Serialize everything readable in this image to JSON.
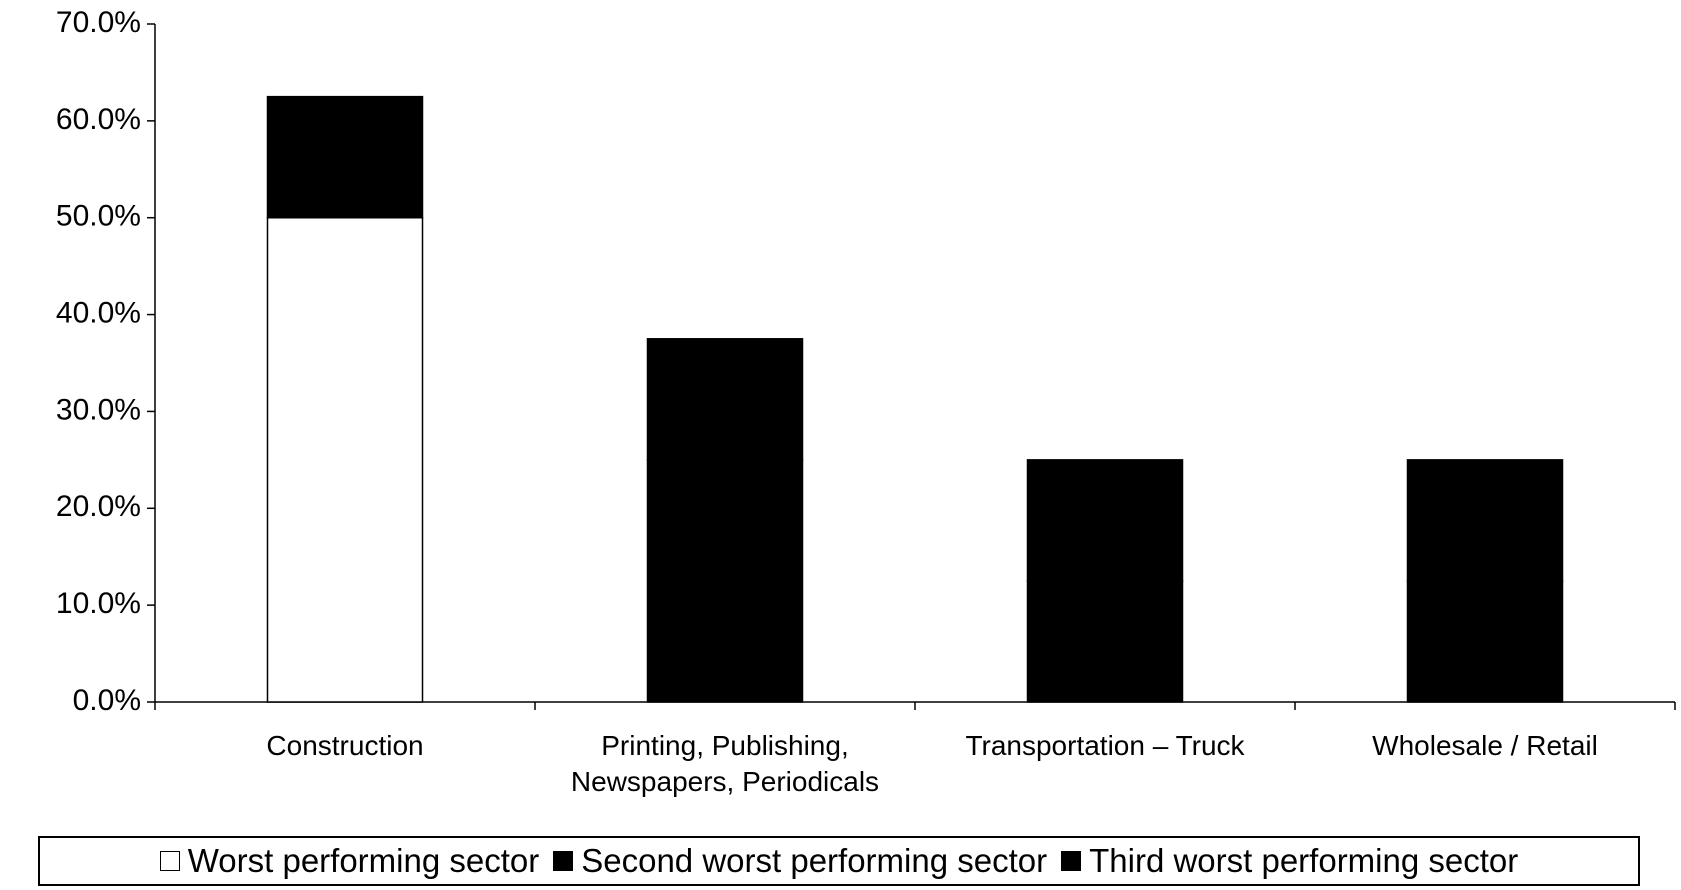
{
  "chart_data": {
    "type": "stacked_bar",
    "categories": [
      "Construction",
      "Printing, Publishing, Newspapers, Periodicals",
      "Transportation – Truck",
      "Wholesale / Retail"
    ],
    "series": [
      {
        "name": "Worst performing sector",
        "color": "#ffffff",
        "values": [
          50,
          0,
          0,
          0
        ]
      },
      {
        "name": "Second worst performing sector",
        "color": "#000000",
        "values": [
          12.5,
          25,
          12.5,
          12.5
        ]
      },
      {
        "name": "Third worst performing sector",
        "color": "#000000",
        "values": [
          0,
          12.5,
          12.5,
          12.5
        ]
      }
    ],
    "ylim": [
      0,
      70
    ],
    "yticks": [
      {
        "value": 0,
        "label": "0.0%"
      },
      {
        "value": 10,
        "label": "10.0%"
      },
      {
        "value": 20,
        "label": "20.0%"
      },
      {
        "value": 30,
        "label": "30.0%"
      },
      {
        "value": 40,
        "label": "40.0%"
      },
      {
        "value": 50,
        "label": "50.0%"
      },
      {
        "value": 60,
        "label": "60.0%"
      },
      {
        "value": 70,
        "label": "70.0%"
      }
    ],
    "grid": false,
    "legend": "bottom"
  }
}
